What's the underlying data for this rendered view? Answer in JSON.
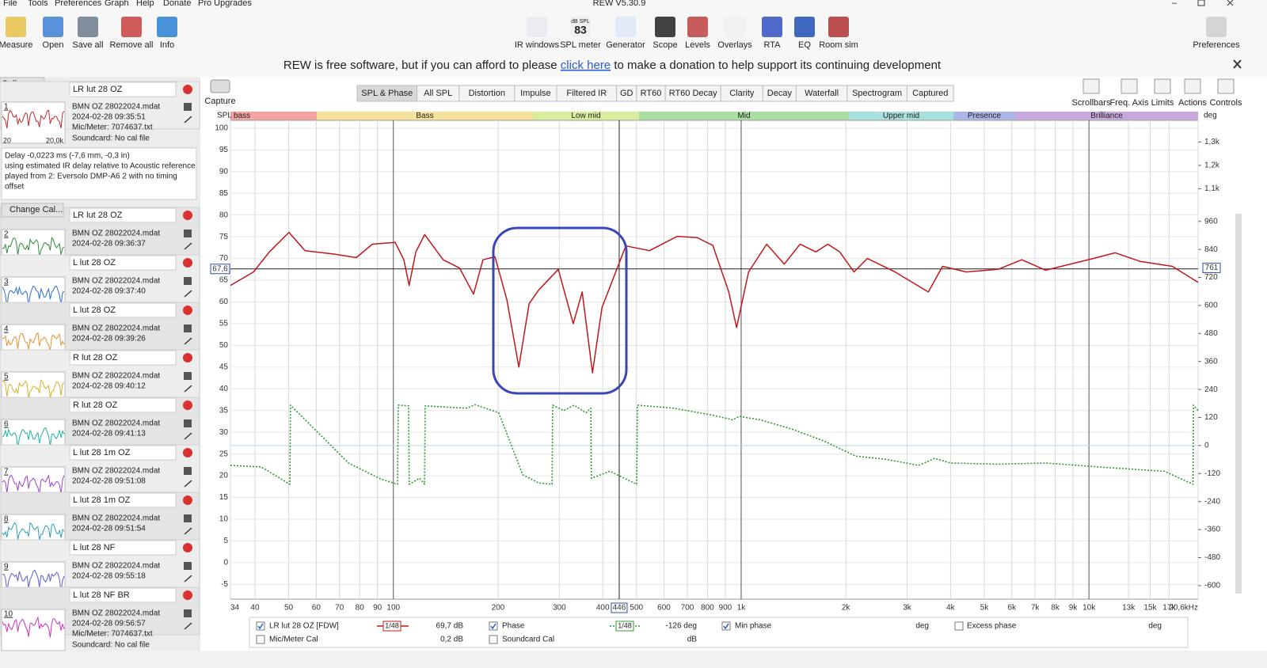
{
  "window": {
    "title": "REW V5.30.9",
    "menu": [
      "File",
      "Tools",
      "Preferences",
      "Graph",
      "Help",
      "Donate",
      "Pro Upgrades"
    ]
  },
  "toolbar": {
    "left": [
      "Measure",
      "Open",
      "Save all",
      "Remove all",
      "Info"
    ],
    "center": [
      "IR windows",
      "SPL meter",
      "Generator",
      "Scope",
      "Levels",
      "Overlays",
      "RTA",
      "EQ",
      "Room sim"
    ],
    "right": [
      "Preferences"
    ],
    "spl_meter_icon": {
      "unit": "dB SPL",
      "reading": "83"
    }
  },
  "banner": {
    "before": "REW is free software, but if you can afford to please ",
    "link": "click here",
    "after": " to make a donation to help support its continuing development"
  },
  "measurements_panel": {
    "collapse": "Collapse",
    "change_cal": "Change Cal...",
    "delay_note": [
      "Delay -0,0223 ms (-7,6 mm, -0,3 in)",
      "using estimated IR delay relative to Acoustic reference",
      "played from 2: Eversolo DMP-A6 2 with no timing",
      "offset"
    ],
    "thumb_axis": [
      "20",
      "20,0k"
    ],
    "items": [
      {
        "number": "1",
        "name": "LR lut 28 OZ",
        "file": "BMN OZ 28022024.mdat",
        "date": "2024-02-28 09:35:51",
        "mic": "Mic/Meter: 7074637.txt",
        "soundcard": "Soundcard: No cal file",
        "color": "#c62828"
      },
      {
        "number": "2",
        "name": "LR lut 28 OZ",
        "file": "BMN OZ 28022024.mdat",
        "date": "2024-02-28 09:36:37",
        "color": "#2e8b3a"
      },
      {
        "number": "3",
        "name": "L lut 28 OZ",
        "file": "BMN OZ 28022024.mdat",
        "date": "2024-02-28 09:37:40",
        "color": "#2a6fd6"
      },
      {
        "number": "4",
        "name": "L lut 28 OZ",
        "file": "BMN OZ 28022024.mdat",
        "date": "2024-02-28 09:39:26",
        "color": "#e8902a"
      },
      {
        "number": "5",
        "name": "R lut 28 OZ",
        "file": "BMN OZ 28022024.mdat",
        "date": "2024-02-28 09:40:12",
        "color": "#d4b020"
      },
      {
        "number": "6",
        "name": "R lut 28 OZ",
        "file": "BMN OZ 28022024.mdat",
        "date": "2024-02-28 09:41:13",
        "color": "#20b0a0"
      },
      {
        "number": "7",
        "name": "L lut 28 1m OZ",
        "file": "BMN OZ 28022024.mdat",
        "date": "2024-02-28 09:51:08",
        "color": "#a040c8"
      },
      {
        "number": "8",
        "name": "L lut 28 1m OZ",
        "file": "BMN OZ 28022024.mdat",
        "date": "2024-02-28 09:51:54",
        "color": "#2a9ab8"
      },
      {
        "number": "9",
        "name": "L lut 28 NF",
        "file": "BMN OZ 28022024.mdat",
        "date": "2024-02-28 09:55:18",
        "color": "#5a5ad0"
      },
      {
        "number": "10",
        "name": "L lut 28 NF BR",
        "file": "BMN OZ 28022024.mdat",
        "date": "2024-02-28 09:56:57",
        "mic": "Mic/Meter: 7074637.txt",
        "soundcard": "Soundcard: No cal file",
        "color": "#c830c0"
      }
    ]
  },
  "graph_toolbar": {
    "capture": "Capture",
    "tabs": [
      "SPL & Phase",
      "All SPL",
      "Distortion",
      "Impulse",
      "Filtered IR",
      "GD",
      "RT60",
      "RT60 Decay",
      "Clarity",
      "Decay",
      "Waterfall",
      "Spectrogram",
      "Captured"
    ],
    "selected_tab": 0,
    "buttons": [
      "Scrollbars",
      "Freq. Axis",
      "Limits",
      "Actions",
      "Controls"
    ]
  },
  "bands": [
    {
      "name": "bass",
      "color": "#f4a3a3"
    },
    {
      "name": "Bass",
      "color": "#f6e29c"
    },
    {
      "name": "Low mid",
      "color": "#d8ec9c"
    },
    {
      "name": "Mid",
      "color": "#a9e0a2"
    },
    {
      "name": "Upper mid",
      "color": "#a8e0de"
    },
    {
      "name": "Presence",
      "color": "#abb6e8"
    },
    {
      "name": "Brilliance",
      "color": "#c7a9de"
    }
  ],
  "chart_data": {
    "type": "line",
    "y_label": "SPL",
    "y2_label": "deg",
    "log_x": true,
    "grid": true,
    "xlim": [
      34,
      20600
    ],
    "xticks": [
      34,
      40,
      50,
      60,
      70,
      80,
      90,
      100,
      200,
      300,
      400,
      500,
      600,
      700,
      800,
      900,
      {
        "value": 1000,
        "label": "1k"
      },
      {
        "value": 2000,
        "label": "2k"
      },
      {
        "value": 3000,
        "label": "3k"
      },
      {
        "value": 4000,
        "label": "4k"
      },
      {
        "value": 5000,
        "label": "5k"
      },
      {
        "value": 6000,
        "label": "6k"
      },
      {
        "value": 7000,
        "label": "7k"
      },
      {
        "value": 8000,
        "label": "8k"
      },
      {
        "value": 9000,
        "label": "9k"
      },
      {
        "value": 10000,
        "label": "10k"
      },
      {
        "value": 13000,
        "label": "13k"
      },
      {
        "value": 15000,
        "label": "15k"
      },
      {
        "value": 17000,
        "label": "17k"
      },
      {
        "value": 20600,
        "label": "20,6kHz"
      }
    ],
    "ylim": [
      -8.4,
      101.8
    ],
    "yticks": [
      100,
      95,
      90,
      85,
      80,
      75,
      70,
      65,
      60,
      55,
      50,
      45,
      40,
      35,
      30,
      25,
      20,
      15,
      10,
      5,
      0,
      -5
    ],
    "y2lim": [
      -658,
      1393
    ],
    "y2ticks": [
      {
        "value": 1300,
        "label": "1,3k"
      },
      {
        "value": 1200,
        "label": "1,2k"
      },
      {
        "value": 1100,
        "label": "1,1k"
      },
      960,
      840,
      720,
      600,
      480,
      360,
      240,
      120,
      0,
      -120,
      -240,
      -360,
      -480,
      -600
    ],
    "cursor": {
      "x": {
        "value": 446,
        "label": "446"
      },
      "y": {
        "value": 67.6,
        "label": "67,6"
      },
      "y2": {
        "value": 761,
        "label": "761"
      }
    },
    "series": [
      {
        "name": "LR lut 28 OZ [FDW]",
        "color": "#c0181a",
        "x": [
          34,
          39.6,
          44,
          50.1,
          55.7,
          67.8,
          78.2,
          87,
          101.2,
          107.2,
          111,
          116,
          123,
          139,
          155,
          170,
          181,
          196,
          212,
          229.5,
          245.6,
          261.5,
          298,
          329,
          349,
          373.6,
          398,
          466,
          545,
          655,
          747,
          829,
          921,
          970,
          1050,
          1184,
          1330,
          1477,
          1640,
          1775,
          1920,
          2110,
          2306,
          2770,
          3453,
          3795,
          4440,
          5478,
          6413,
          7508,
          10280,
          11900,
          14080,
          17370,
          20600
        ],
        "values": [
          63.8,
          66.9,
          71.5,
          76,
          71.8,
          71,
          70.2,
          73.3,
          73.7,
          69.7,
          63.8,
          71.5,
          75.5,
          69.7,
          67.8,
          61.8,
          69.7,
          70.4,
          60.5,
          45,
          59.6,
          62.7,
          67.5,
          55,
          62.3,
          43.7,
          58.7,
          72.9,
          71.8,
          75.1,
          74.8,
          73,
          62.3,
          54.1,
          66.9,
          73.3,
          68.7,
          73.3,
          71.5,
          73.3,
          71.5,
          66.9,
          70,
          66.9,
          62.3,
          68.2,
          66.9,
          67.5,
          69.7,
          67.3,
          70,
          71.3,
          69.3,
          68.2,
          64.5
        ]
      },
      {
        "name": "Phase",
        "color": "#2e9a2e",
        "axis": "y2",
        "x": [
          34,
          41.7,
          50.4,
          50.6,
          60.2,
          74.3,
          91.6,
          102.8,
          103.3,
          110.6,
          111.1,
          119,
          122.9,
          123.4,
          139.4,
          163,
          172,
          201,
          235.5,
          261.5,
          286,
          287,
          309,
          331,
          358,
          369.6,
          371,
          419.6,
          501,
          503,
          638,
          829,
          946,
          986,
          1136,
          1402,
          1728,
          2132,
          2628,
          3241,
          3601,
          3999,
          5478,
          7508,
          11420,
          16490,
          19920,
          19970,
          20600
        ],
        "values": [
          -85,
          -92,
          -166,
          173,
          61,
          -75,
          -142,
          -166,
          173,
          170,
          -166,
          -140,
          -166,
          170,
          165,
          160,
          175,
          140,
          -125,
          -160,
          -166,
          173,
          150,
          173,
          140,
          160,
          -140,
          -110,
          -166,
          173,
          160,
          130,
          110,
          125,
          110,
          70,
          20,
          -45,
          -60,
          -85,
          -55,
          -75,
          -80,
          -75,
          -95,
          -110,
          -166,
          173,
          150
        ]
      }
    ]
  },
  "legend": {
    "spl_smoothing": "1/48",
    "spl_readout": "69,7 dB",
    "phase_smoothing": "1/48",
    "phase_readout": "-126 deg",
    "min_phase": "Min phase",
    "min_phase_unit": "deg",
    "excess_phase": "Excess phase",
    "excess_phase_unit": "deg",
    "mic_cal": "Mic/Meter Cal",
    "mic_readout": "0,2 dB",
    "soundcard_cal": "Soundcard Cal",
    "soundcard_unit": "dB"
  }
}
